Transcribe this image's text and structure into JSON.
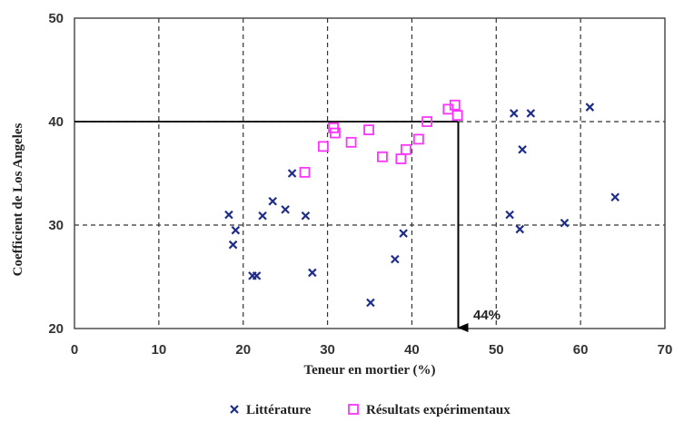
{
  "chart_data": {
    "type": "scatter",
    "xlabel": "Teneur en mortier (%)",
    "ylabel": "Coefficient de Los Angeles",
    "xlim": [
      0,
      70
    ],
    "ylim": [
      20,
      50
    ],
    "xticks": [
      "0",
      "10",
      "20",
      "30",
      "40",
      "50",
      "60",
      "70"
    ],
    "yticks": [
      "20",
      "30",
      "40",
      "50"
    ],
    "grid": "dashed",
    "legend_position": "bottom",
    "series": [
      {
        "name": "Littérature",
        "marker": "x",
        "color": "#1f2d8a",
        "points": [
          [
            18.3,
            31
          ],
          [
            18.8,
            28.1
          ],
          [
            19.1,
            29.5
          ],
          [
            21.1,
            25.1
          ],
          [
            21.6,
            25.1
          ],
          [
            22.3,
            30.9
          ],
          [
            23.5,
            32.3
          ],
          [
            25.0,
            31.5
          ],
          [
            25.8,
            35.0
          ],
          [
            27.4,
            30.9
          ],
          [
            28.2,
            25.4
          ],
          [
            35.1,
            22.5
          ],
          [
            38.0,
            26.7
          ],
          [
            39.0,
            29.2
          ],
          [
            51.6,
            31.0
          ],
          [
            52.1,
            40.8
          ],
          [
            52.8,
            29.6
          ],
          [
            53.1,
            37.3
          ],
          [
            54.1,
            40.8
          ],
          [
            58.1,
            30.2
          ],
          [
            61.1,
            41.4
          ],
          [
            64.1,
            32.7
          ]
        ]
      },
      {
        "name": "Résultats expérimentaux",
        "marker": "square",
        "color": "#ff33ff",
        "points": [
          [
            27.3,
            35.1
          ],
          [
            29.5,
            37.6
          ],
          [
            30.7,
            39.4
          ],
          [
            30.9,
            38.9
          ],
          [
            32.8,
            38.0
          ],
          [
            34.9,
            39.2
          ],
          [
            36.5,
            36.6
          ],
          [
            38.7,
            36.4
          ],
          [
            39.3,
            37.3
          ],
          [
            40.8,
            38.3
          ],
          [
            41.8,
            40.0
          ],
          [
            44.3,
            41.2
          ],
          [
            45.1,
            41.6
          ],
          [
            45.4,
            40.6
          ]
        ]
      }
    ],
    "reference": {
      "x": 45.5,
      "y": 40,
      "label": "44%"
    },
    "colors": {
      "grid": "#333333",
      "arrow": "#000000",
      "axis": "#333333"
    }
  }
}
